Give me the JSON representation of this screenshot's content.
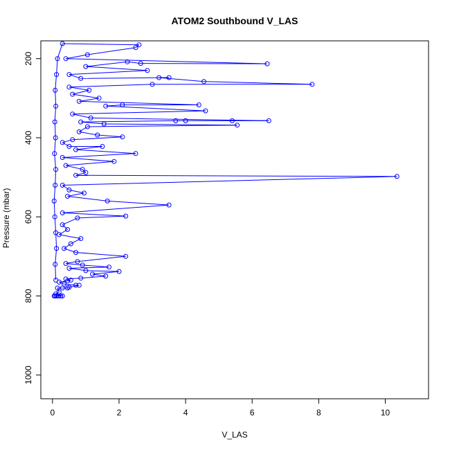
{
  "chart_data": {
    "type": "scatter",
    "title": "ATOM2 Southbound V_LAS",
    "xlabel": "V_LAS",
    "ylabel": "Pressure (mbar)",
    "xlim": [
      -0.35,
      11.3
    ],
    "ylim": [
      1060,
      155
    ],
    "y_axis_reversed": true,
    "x_ticks": [
      "0",
      "2",
      "4",
      "6",
      "8",
      "10"
    ],
    "y_ticks": [
      "200",
      "400",
      "600",
      "800",
      "1000"
    ],
    "grid": false,
    "legend": "none",
    "series_color": "#0000ff",
    "marker": "open-circle",
    "connect_points": true,
    "points": [
      [
        0.05,
        800
      ],
      [
        0.08,
        800
      ],
      [
        0.12,
        800
      ],
      [
        0.18,
        800
      ],
      [
        0.25,
        800
      ],
      [
        0.3,
        800
      ],
      [
        0.1,
        795
      ],
      [
        0.2,
        790
      ],
      [
        0.15,
        780
      ],
      [
        0.3,
        780
      ],
      [
        0.45,
        780
      ],
      [
        0.5,
        778
      ],
      [
        0.8,
        773
      ],
      [
        0.7,
        773
      ],
      [
        0.35,
        770
      ],
      [
        0.2,
        765
      ],
      [
        0.45,
        762
      ],
      [
        0.55,
        760
      ],
      [
        0.4,
        757
      ],
      [
        0.85,
        755
      ],
      [
        1.6,
        750
      ],
      [
        1.2,
        745
      ],
      [
        2.0,
        738
      ],
      [
        1.0,
        736
      ],
      [
        0.5,
        730
      ],
      [
        1.7,
        727
      ],
      [
        0.9,
        722
      ],
      [
        0.4,
        718
      ],
      [
        0.75,
        713
      ],
      [
        2.2,
        700
      ],
      [
        0.7,
        690
      ],
      [
        0.35,
        680
      ],
      [
        0.55,
        668
      ],
      [
        0.85,
        655
      ],
      [
        0.2,
        645
      ],
      [
        0.45,
        632
      ],
      [
        0.3,
        620
      ],
      [
        0.75,
        603
      ],
      [
        2.2,
        598
      ],
      [
        0.3,
        590
      ],
      [
        3.5,
        570
      ],
      [
        1.65,
        560
      ],
      [
        0.45,
        548
      ],
      [
        0.95,
        540
      ],
      [
        0.5,
        532
      ],
      [
        0.3,
        520
      ],
      [
        10.35,
        498
      ],
      [
        0.7,
        495
      ],
      [
        1.0,
        488
      ],
      [
        0.9,
        480
      ],
      [
        0.4,
        470
      ],
      [
        1.85,
        460
      ],
      [
        0.3,
        450
      ],
      [
        2.5,
        440
      ],
      [
        0.7,
        430
      ],
      [
        1.5,
        422
      ],
      [
        0.5,
        422
      ],
      [
        0.3,
        412
      ],
      [
        0.6,
        405
      ],
      [
        2.1,
        398
      ],
      [
        1.35,
        393
      ],
      [
        0.8,
        385
      ],
      [
        1.05,
        372
      ],
      [
        5.55,
        368
      ],
      [
        1.55,
        365
      ],
      [
        0.85,
        360
      ],
      [
        3.7,
        357
      ],
      [
        4.0,
        357
      ],
      [
        5.4,
        357
      ],
      [
        6.5,
        357
      ],
      [
        1.15,
        350
      ],
      [
        0.6,
        340
      ],
      [
        4.6,
        332
      ],
      [
        1.6,
        320
      ],
      [
        2.1,
        317
      ],
      [
        4.4,
        317
      ],
      [
        0.8,
        308
      ],
      [
        1.4,
        300
      ],
      [
        0.6,
        290
      ],
      [
        1.1,
        280
      ],
      [
        0.5,
        272
      ],
      [
        3.0,
        265
      ],
      [
        7.8,
        265
      ],
      [
        4.55,
        258
      ],
      [
        3.2,
        248
      ],
      [
        3.5,
        248
      ],
      [
        0.85,
        250
      ],
      [
        0.5,
        240
      ],
      [
        2.85,
        230
      ],
      [
        1.0,
        220
      ],
      [
        2.25,
        208
      ],
      [
        2.65,
        212
      ],
      [
        6.45,
        213
      ],
      [
        0.4,
        200
      ],
      [
        1.05,
        190
      ],
      [
        2.5,
        172
      ],
      [
        2.6,
        165
      ],
      [
        0.3,
        162
      ],
      [
        0.15,
        200
      ],
      [
        0.12,
        240
      ],
      [
        0.08,
        280
      ],
      [
        0.1,
        320
      ],
      [
        0.07,
        360
      ],
      [
        0.09,
        400
      ],
      [
        0.06,
        440
      ],
      [
        0.1,
        480
      ],
      [
        0.08,
        520
      ],
      [
        0.05,
        560
      ],
      [
        0.07,
        600
      ],
      [
        0.1,
        640
      ],
      [
        0.12,
        680
      ],
      [
        0.08,
        720
      ],
      [
        0.1,
        760
      ]
    ]
  }
}
